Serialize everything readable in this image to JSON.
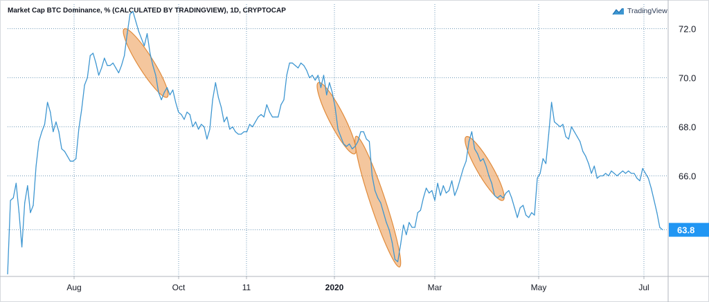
{
  "header": {
    "title": "Market Cap BTC Dominance, % (CALCULATED BY TRADINGVIEW), 1D, CRYPTOCAP",
    "brand": "TradingView"
  },
  "colors": {
    "line": "#3d96d1",
    "grid": "#6f9ab8",
    "highlight_fill": "#f0b077",
    "highlight_stroke": "#e08a3a",
    "price_tag": "#2196f3"
  },
  "last_value_label": "63.8",
  "chart_data": {
    "type": "line",
    "title": "Market Cap BTC Dominance, % (CALCULATED BY TRADINGVIEW), 1D, CRYPTOCAP",
    "xlabel": "",
    "ylabel": "",
    "y_ticks": [
      72.0,
      70.0,
      68.0,
      66.0,
      63.8
    ],
    "y_tick_labels": [
      "72.0",
      "70.0",
      "68.0",
      "66.0"
    ],
    "x_tick_labels": [
      "Aug",
      "Oct",
      "11",
      "2020",
      "Mar",
      "May",
      "Jul"
    ],
    "ylim": [
      61.9,
      73.0
    ],
    "grid": true,
    "last_value": 63.8,
    "series": [
      {
        "values": [
          62.0,
          65.0,
          65.1,
          65.7,
          64.5,
          63.1,
          64.9,
          65.6,
          64.5,
          64.8,
          66.4,
          67.4,
          67.8,
          68.1,
          69.0,
          68.6,
          67.8,
          68.2,
          67.8,
          67.1,
          67.0,
          66.8,
          66.6,
          66.6,
          66.7,
          67.9,
          68.7,
          69.7,
          70.0,
          70.9,
          71.0,
          70.6,
          70.1,
          70.4,
          70.8,
          70.5,
          70.5,
          70.6,
          70.4,
          70.2,
          70.5,
          70.9,
          71.8,
          72.6,
          72.7,
          72.3,
          71.9,
          71.6,
          71.3,
          71.8,
          71.0,
          70.5,
          70.1,
          69.4,
          69.1,
          69.4,
          69.6,
          69.3,
          69.5,
          69.0,
          68.6,
          68.5,
          68.3,
          68.6,
          68.5,
          68.0,
          68.2,
          67.9,
          68.1,
          68.0,
          67.5,
          67.9,
          69.1,
          69.8,
          69.2,
          68.8,
          68.2,
          68.4,
          67.9,
          68.0,
          67.8,
          67.7,
          67.7,
          67.8,
          67.8,
          68.1,
          68.0,
          68.2,
          68.4,
          68.5,
          68.4,
          68.9,
          68.6,
          68.4,
          68.4,
          68.4,
          68.9,
          69.1,
          70.1,
          70.6,
          70.6,
          70.5,
          70.4,
          70.6,
          70.5,
          70.3,
          70.0,
          70.1,
          69.9,
          70.1,
          69.6,
          70.1,
          69.3,
          69.8,
          69.4,
          68.8,
          67.9,
          67.6,
          67.3,
          67.2,
          67.3,
          67.1,
          67.2,
          67.4,
          67.8,
          67.8,
          67.5,
          67.4,
          66.0,
          65.4,
          65.1,
          64.9,
          64.5,
          64.1,
          63.8,
          63.3,
          62.6,
          62.5,
          63.2,
          64.0,
          63.6,
          64.1,
          63.9,
          63.9,
          64.5,
          64.6,
          65.1,
          65.5,
          65.3,
          65.4,
          65.0,
          65.7,
          65.2,
          65.6,
          65.3,
          65.4,
          65.8,
          65.2,
          65.5,
          65.9,
          66.3,
          66.6,
          67.4,
          67.8,
          67.1,
          66.9,
          66.6,
          66.7,
          66.4,
          66.0,
          65.7,
          65.2,
          65.1,
          65.2,
          65.1,
          65.3,
          65.4,
          65.1,
          64.7,
          64.3,
          64.7,
          64.8,
          64.4,
          64.3,
          64.5,
          64.4,
          65.9,
          66.1,
          66.7,
          66.5,
          67.7,
          69.0,
          68.2,
          68.1,
          68.0,
          68.1,
          67.6,
          67.5,
          68.0,
          67.8,
          67.6,
          67.4,
          67.0,
          66.8,
          66.5,
          66.1,
          66.4,
          65.9,
          66.0,
          66.0,
          66.1,
          66.0,
          66.2,
          66.1,
          66.0,
          66.1,
          66.2,
          66.1,
          66.2,
          66.1,
          66.1,
          65.9,
          65.8,
          66.3,
          66.1,
          65.9,
          65.5,
          65.0,
          64.5,
          63.9,
          63.8
        ]
      }
    ],
    "highlights": [
      {
        "start_index": 42,
        "end_index": 55
      },
      {
        "start_index": 110,
        "end_index": 121
      },
      {
        "start_index": 123,
        "end_index": 137
      },
      {
        "start_index": 162,
        "end_index": 173
      }
    ]
  }
}
